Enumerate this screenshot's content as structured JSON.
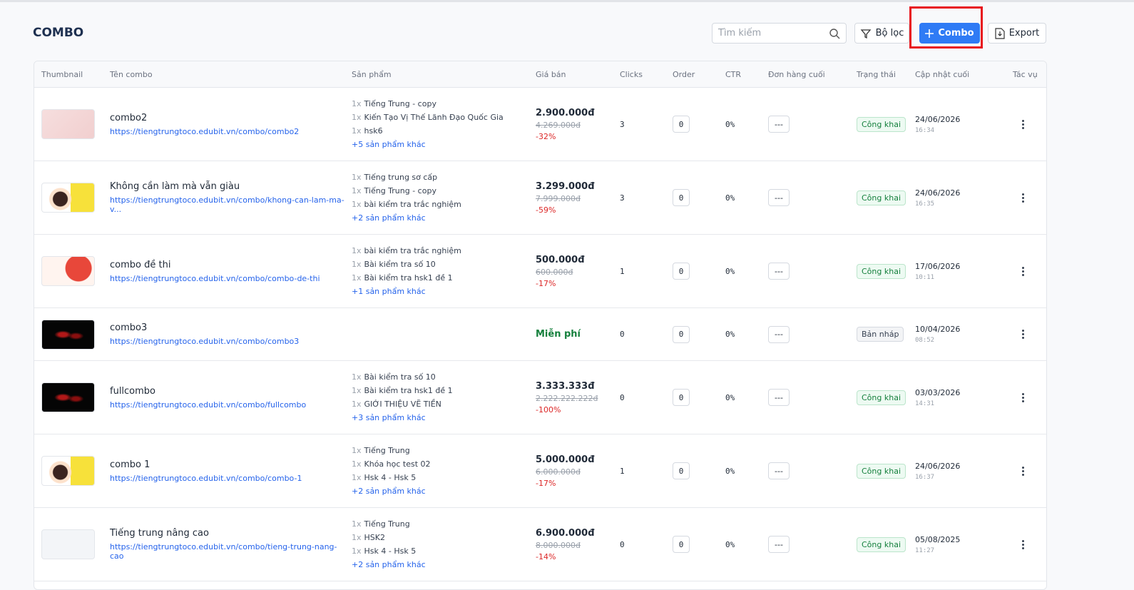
{
  "header": {
    "title": "COMBO",
    "search_placeholder": "Tìm kiếm",
    "filter": "Bộ lọc",
    "add": "Combo",
    "export": "Export"
  },
  "table": {
    "columns": [
      "Thumbnail",
      "Tên combo",
      "Sản phẩm",
      "Giá bán",
      "Clicks",
      "Order",
      "CTR",
      "Đơn hàng cuối",
      "Trạng thái",
      "Cập nhật cuối",
      "Tác vụ"
    ],
    "rows": [
      {
        "thumb": "pink",
        "name": "combo2",
        "url": "https://tiengtrungtoco.edubit.vn/combo/combo2",
        "products": [
          {
            "qty": "1x",
            "name": "Tiếng Trung - copy"
          },
          {
            "qty": "1x",
            "name": "Kiến Tạo Vị Thế Lãnh Đạo Quốc Gia"
          },
          {
            "qty": "1x",
            "name": "hsk6"
          }
        ],
        "more": "+5 sản phẩm khác",
        "price": "2.900.000đ",
        "old_price": "4.269.000đ",
        "discount": "-32%",
        "clicks": "3",
        "order": "0",
        "ctr": "0%",
        "last_order": "---",
        "status": "Công khai",
        "date": "24/06/2026",
        "time": "16:34"
      },
      {
        "thumb": "girl",
        "name": "Không cần làm mà vẫn giàu",
        "url": "https://tiengtrungtoco.edubit.vn/combo/khong-can-lam-ma-v...",
        "products": [
          {
            "qty": "1x",
            "name": "Tiếng trung sơ cấp"
          },
          {
            "qty": "1x",
            "name": "Tiếng Trung - copy"
          },
          {
            "qty": "1x",
            "name": "bài kiểm tra trắc nghiệm"
          }
        ],
        "more": "+2 sản phẩm khác",
        "price": "3.299.000đ",
        "old_price": "7.999.000đ",
        "discount": "-59%",
        "clicks": "3",
        "order": "0",
        "ctr": "0%",
        "last_order": "---",
        "status": "Công khai",
        "date": "24/06/2026",
        "time": "16:35"
      },
      {
        "thumb": "red",
        "name": "combo đề thi",
        "url": "https://tiengtrungtoco.edubit.vn/combo/combo-de-thi",
        "products": [
          {
            "qty": "1x",
            "name": "bài kiểm tra trắc nghiệm"
          },
          {
            "qty": "1x",
            "name": "Bài kiểm tra số 10"
          },
          {
            "qty": "1x",
            "name": "Bài kiểm tra hsk1 đề 1"
          }
        ],
        "more": "+1 sản phẩm khác",
        "price": "500.000đ",
        "old_price": "600.000đ",
        "discount": "-17%",
        "clicks": "1",
        "order": "0",
        "ctr": "0%",
        "last_order": "---",
        "status": "Công khai",
        "date": "17/06/2026",
        "time": "10:11"
      },
      {
        "thumb": "dark",
        "name": "combo3",
        "url": "https://tiengtrungtoco.edubit.vn/combo/combo3",
        "products": [],
        "free": "Miễn phí",
        "clicks": "0",
        "order": "0",
        "ctr": "0%",
        "last_order": "---",
        "status": "Bản nháp",
        "draft": true,
        "date": "10/04/2026",
        "time": "08:52"
      },
      {
        "thumb": "dark",
        "name": "fullcombo",
        "url": "https://tiengtrungtoco.edubit.vn/combo/fullcombo",
        "products": [
          {
            "qty": "1x",
            "name": "Bài kiểm tra số 10"
          },
          {
            "qty": "1x",
            "name": "Bài kiểm tra hsk1 đề 1"
          },
          {
            "qty": "1x",
            "name": "GIỚI THIỆU VẼ TIỀN"
          }
        ],
        "more": "+3 sản phẩm khác",
        "price": "3.333.333đ",
        "old_price": "2.222.222.222đ",
        "discount": "-100%",
        "clicks": "0",
        "order": "0",
        "ctr": "0%",
        "last_order": "---",
        "status": "Công khai",
        "date": "03/03/2026",
        "time": "14:31"
      },
      {
        "thumb": "girl",
        "name": "combo 1",
        "url": "https://tiengtrungtoco.edubit.vn/combo/combo-1",
        "products": [
          {
            "qty": "1x",
            "name": "Tiếng Trung"
          },
          {
            "qty": "1x",
            "name": "Khóa học test 02"
          },
          {
            "qty": "1x",
            "name": "Hsk 4 - Hsk 5"
          }
        ],
        "more": "+2 sản phẩm khác",
        "price": "5.000.000đ",
        "old_price": "6.000.000đ",
        "discount": "-17%",
        "clicks": "1",
        "order": "0",
        "ctr": "0%",
        "last_order": "---",
        "status": "Công khai",
        "date": "24/06/2026",
        "time": "16:37"
      },
      {
        "thumb": "empty",
        "name": "Tiếng trung nâng cao",
        "url": "https://tiengtrungtoco.edubit.vn/combo/tieng-trung-nang-cao",
        "products": [
          {
            "qty": "1x",
            "name": "Tiếng Trung"
          },
          {
            "qty": "1x",
            "name": "HSK2"
          },
          {
            "qty": "1x",
            "name": "Hsk 4 - Hsk 5"
          }
        ],
        "more": "+2 sản phẩm khác",
        "price": "6.900.000đ",
        "old_price": "8.000.000đ",
        "discount": "-14%",
        "clicks": "0",
        "order": "0",
        "ctr": "0%",
        "last_order": "---",
        "status": "Công khai",
        "date": "05/08/2025",
        "time": "11:27"
      }
    ]
  }
}
